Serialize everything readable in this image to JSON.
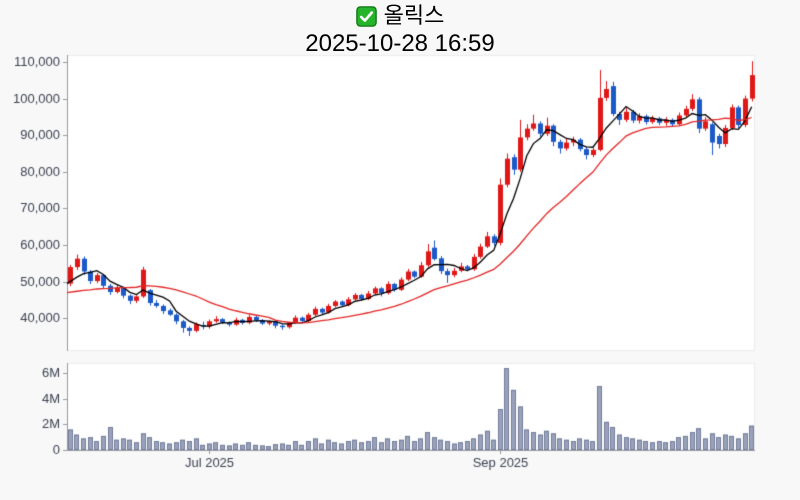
{
  "header": {
    "title": "올릭스",
    "subtitle": "2025-10-28 16:59"
  },
  "chart_data": {
    "type": "candlestick",
    "title": "올릭스",
    "subtitle": "2025-10-28 16:59",
    "grid": false,
    "legend": null,
    "price_axis": {
      "min": 31100,
      "max": 111900,
      "ticks": [
        {
          "value": 40000,
          "label": "40,000"
        },
        {
          "value": 50000,
          "label": "50,000"
        },
        {
          "value": 60000,
          "label": "60,000"
        },
        {
          "value": 70000,
          "label": "70,000"
        },
        {
          "value": 80000,
          "label": "80,000"
        },
        {
          "value": 90000,
          "label": "90,000"
        },
        {
          "value": 100000,
          "label": "100,000"
        },
        {
          "value": 110000,
          "label": "110,000"
        }
      ]
    },
    "volume_axis": {
      "min": 0,
      "max": 6800000,
      "ticks": [
        {
          "value": 0,
          "label": "0"
        },
        {
          "value": 2000000,
          "label": "2M"
        },
        {
          "value": 4000000,
          "label": "4M"
        },
        {
          "value": 6000000,
          "label": "6M"
        }
      ]
    },
    "x_ticks": [
      {
        "candle_index": 21,
        "label": "Jul 2025"
      },
      {
        "candle_index": 65,
        "label": "Sep 2025"
      }
    ],
    "moving_averages": [
      {
        "name": "ma-short",
        "window": 5,
        "color": "#000000"
      },
      {
        "name": "ma-long",
        "window": 20,
        "color": "#e42525"
      }
    ],
    "prehistory_closes": [
      49000,
      48500,
      48000,
      47500,
      47000,
      46500,
      46000,
      45500,
      45000,
      44500,
      44500,
      45000,
      45500,
      46000,
      46500,
      47000,
      47500,
      48000,
      48500,
      49500
    ],
    "candles": [
      [
        49500,
        54600,
        48800,
        54000
      ],
      [
        54000,
        57400,
        53200,
        56300
      ],
      [
        56300,
        56900,
        51900,
        52800
      ],
      [
        52800,
        53200,
        49400,
        50200
      ],
      [
        50200,
        52400,
        49600,
        51800
      ],
      [
        51800,
        52100,
        48100,
        48900
      ],
      [
        48900,
        49400,
        46400,
        47200
      ],
      [
        47200,
        49100,
        46800,
        48400
      ],
      [
        48400,
        48700,
        45500,
        46200
      ],
      [
        46200,
        46500,
        43900,
        44800
      ],
      [
        44800,
        46300,
        44200,
        46000
      ],
      [
        46000,
        54100,
        45600,
        53300
      ],
      [
        47700,
        48000,
        43500,
        44200
      ],
      [
        44200,
        45000,
        42900,
        43400
      ],
      [
        43400,
        43800,
        41200,
        42000
      ],
      [
        42200,
        42700,
        40700,
        41000
      ],
      [
        41000,
        41400,
        38400,
        39200
      ],
      [
        39200,
        39600,
        36100,
        37400
      ],
      [
        37400,
        37800,
        35200,
        36600
      ],
      [
        36600,
        38900,
        36200,
        38400
      ],
      [
        38200,
        39100,
        37000,
        37800
      ],
      [
        37800,
        39700,
        37200,
        39200
      ],
      [
        39200,
        40600,
        38800,
        39800
      ],
      [
        39800,
        40100,
        38500,
        38900
      ],
      [
        38900,
        39200,
        37800,
        38300
      ],
      [
        38300,
        40200,
        38000,
        39600
      ],
      [
        39600,
        39900,
        38300,
        38800
      ],
      [
        38800,
        41000,
        38400,
        40400
      ],
      [
        40400,
        40700,
        39000,
        39400
      ],
      [
        39400,
        39800,
        38200,
        38600
      ],
      [
        38600,
        39500,
        38100,
        39200
      ],
      [
        39200,
        39400,
        37300,
        38000
      ],
      [
        38000,
        38400,
        36900,
        37600
      ],
      [
        37600,
        39100,
        37200,
        38800
      ],
      [
        38800,
        40800,
        38500,
        40200
      ],
      [
        40200,
        40500,
        38900,
        39300
      ],
      [
        39300,
        41500,
        39000,
        41000
      ],
      [
        41000,
        43200,
        40600,
        42600
      ],
      [
        42600,
        42900,
        41200,
        41600
      ],
      [
        41600,
        44000,
        41300,
        43400
      ],
      [
        43400,
        45000,
        43000,
        44600
      ],
      [
        44600,
        44900,
        43200,
        43600
      ],
      [
        43600,
        45800,
        43300,
        45200
      ],
      [
        45200,
        46900,
        44800,
        46400
      ],
      [
        46400,
        46700,
        44900,
        45300
      ],
      [
        45300,
        47500,
        45000,
        46800
      ],
      [
        46800,
        48700,
        46400,
        48200
      ],
      [
        48200,
        48500,
        46000,
        46900
      ],
      [
        46900,
        50100,
        46500,
        49400
      ],
      [
        49400,
        49700,
        47300,
        47800
      ],
      [
        47800,
        51200,
        47500,
        50600
      ],
      [
        50600,
        53500,
        50200,
        52800
      ],
      [
        52800,
        53100,
        51000,
        51400
      ],
      [
        51400,
        55400,
        51100,
        54500
      ],
      [
        54500,
        60300,
        54000,
        58300
      ],
      [
        59300,
        61300,
        55800,
        56200
      ],
      [
        56400,
        57000,
        52100,
        52900
      ],
      [
        52900,
        53600,
        49700,
        51800
      ],
      [
        51800,
        53800,
        51200,
        53000
      ],
      [
        53000,
        55200,
        52600,
        54200
      ],
      [
        54200,
        54600,
        52900,
        53400
      ],
      [
        53400,
        57600,
        53000,
        56800
      ],
      [
        56800,
        60400,
        56300,
        59600
      ],
      [
        59600,
        63600,
        59200,
        62400
      ],
      [
        62400,
        63000,
        59800,
        60600
      ],
      [
        60600,
        78200,
        59900,
        76500
      ],
      [
        76500,
        85000,
        75800,
        83600
      ],
      [
        84000,
        84800,
        79200,
        80600
      ],
      [
        80600,
        94200,
        80000,
        89400
      ],
      [
        89400,
        93000,
        88600,
        91800
      ],
      [
        91800,
        95600,
        91200,
        93200
      ],
      [
        93200,
        93800,
        89600,
        90400
      ],
      [
        90400,
        94800,
        89800,
        92600
      ],
      [
        92600,
        93000,
        87000,
        88200
      ],
      [
        88200,
        88800,
        85000,
        86400
      ],
      [
        86400,
        89000,
        85800,
        88000
      ],
      [
        88000,
        89600,
        87000,
        88800
      ],
      [
        88800,
        89200,
        85600,
        86200
      ],
      [
        86200,
        86800,
        83400,
        84600
      ],
      [
        84600,
        86600,
        84000,
        86000
      ],
      [
        86000,
        107800,
        85600,
        100200
      ],
      [
        100200,
        104800,
        99400,
        102600
      ],
      [
        103400,
        104600,
        95200,
        95800
      ],
      [
        95800,
        96400,
        92800,
        94200
      ],
      [
        94200,
        97600,
        93600,
        96400
      ],
      [
        96400,
        96900,
        93300,
        94000
      ],
      [
        94000,
        96000,
        93200,
        95200
      ],
      [
        95200,
        95700,
        92900,
        93600
      ],
      [
        93600,
        95300,
        93100,
        94600
      ],
      [
        94600,
        95000,
        92800,
        93400
      ],
      [
        93400,
        94900,
        92600,
        94200
      ],
      [
        94200,
        94600,
        92400,
        93000
      ],
      [
        93000,
        96200,
        92600,
        95400
      ],
      [
        95400,
        98000,
        94800,
        97200
      ],
      [
        97200,
        101200,
        96600,
        99800
      ],
      [
        99800,
        100400,
        90600,
        91800
      ],
      [
        91800,
        94900,
        91200,
        93800
      ],
      [
        93000,
        93500,
        84600,
        88000
      ],
      [
        89800,
        90400,
        86400,
        87600
      ],
      [
        87600,
        92800,
        86800,
        92000
      ],
      [
        92000,
        98400,
        91500,
        97600
      ],
      [
        97600,
        98100,
        92000,
        92800
      ],
      [
        92800,
        100800,
        92200,
        100000
      ],
      [
        100000,
        110200,
        99200,
        106400
      ]
    ],
    "volumes": [
      1600000,
      1200000,
      900000,
      1000000,
      700000,
      1100000,
      1800000,
      800000,
      900000,
      800000,
      600000,
      1300000,
      1000000,
      700000,
      600000,
      500000,
      600000,
      800000,
      700000,
      900000,
      400000,
      500000,
      600000,
      400000,
      350000,
      500000,
      400000,
      600000,
      400000,
      350000,
      300000,
      450000,
      500000,
      400000,
      700000,
      400000,
      700000,
      900000,
      500000,
      800000,
      600000,
      500000,
      700000,
      800000,
      600000,
      700000,
      1000000,
      600000,
      900000,
      700000,
      800000,
      1100000,
      700000,
      900000,
      1400000,
      1000000,
      800000,
      700000,
      500000,
      600000,
      700000,
      900000,
      1200000,
      1500000,
      800000,
      3200000,
      6400000,
      4700000,
      3400000,
      1600000,
      1400000,
      1200000,
      1500000,
      1300000,
      900000,
      800000,
      700000,
      900000,
      800000,
      700000,
      5000000,
      2200000,
      1800000,
      1200000,
      1000000,
      900000,
      800000,
      700000,
      600000,
      700000,
      600000,
      700000,
      1000000,
      1100000,
      1400000,
      1700000,
      900000,
      1300000,
      1000000,
      1200000,
      1100000,
      900000,
      1300000,
      1900000
    ],
    "colors": {
      "up": "#e01717",
      "down": "#1c59c8",
      "volume_bar": "#99a2ba",
      "volume_bar_border": "#747e9b",
      "axis_line": "#9b9b9f",
      "panel_border": "#ececee",
      "tick_label": "#3d4350",
      "background": "#f8f8f9",
      "plot_background": "#ffffff"
    }
  }
}
